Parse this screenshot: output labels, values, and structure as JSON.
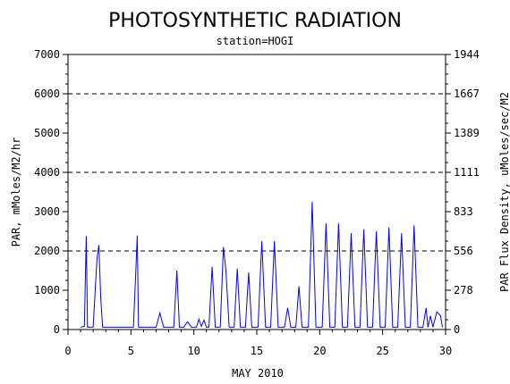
{
  "chart_data": {
    "type": "line",
    "title": "PHOTOSYNTHETIC RADIATION",
    "subtitle": "station=HOGI",
    "xlabel": "MAY 2010",
    "ylabel": "PAR, mMoles/M2/hr",
    "y2label": "PAR Flux Density, uMoles/sec/M2",
    "xlim": [
      0,
      30
    ],
    "ylim": [
      0,
      7000
    ],
    "x_ticks": [
      0,
      5,
      10,
      15,
      20,
      25,
      30
    ],
    "y_ticks": [
      0,
      1000,
      2000,
      3000,
      4000,
      5000,
      6000,
      7000
    ],
    "y2_ticks": [
      0,
      278,
      556,
      833,
      1111,
      1389,
      1667,
      1944
    ],
    "gridlines_dashed": [
      2000,
      4000,
      6000
    ],
    "line_color": "#0000ff",
    "series": [
      {
        "values": [
          [
            1.0,
            60
          ],
          [
            1.3,
            80
          ],
          [
            1.45,
            2380
          ],
          [
            1.55,
            60
          ],
          [
            2.0,
            60
          ],
          [
            2.3,
            1800
          ],
          [
            2.45,
            2150
          ],
          [
            2.6,
            800
          ],
          [
            2.75,
            60
          ],
          [
            5.2,
            60
          ],
          [
            5.4,
            1600
          ],
          [
            5.5,
            2390
          ],
          [
            5.6,
            60
          ],
          [
            7.0,
            60
          ],
          [
            7.3,
            420
          ],
          [
            7.6,
            60
          ],
          [
            8.4,
            60
          ],
          [
            8.65,
            1500
          ],
          [
            8.85,
            60
          ],
          [
            9.2,
            60
          ],
          [
            9.5,
            200
          ],
          [
            9.8,
            60
          ],
          [
            10.2,
            60
          ],
          [
            10.4,
            260
          ],
          [
            10.6,
            80
          ],
          [
            10.8,
            240
          ],
          [
            11.0,
            60
          ],
          [
            11.2,
            60
          ],
          [
            11.45,
            1600
          ],
          [
            11.7,
            60
          ],
          [
            12.1,
            60
          ],
          [
            12.35,
            2100
          ],
          [
            12.55,
            1500
          ],
          [
            12.8,
            60
          ],
          [
            13.2,
            60
          ],
          [
            13.45,
            1550
          ],
          [
            13.7,
            60
          ],
          [
            14.1,
            60
          ],
          [
            14.35,
            1450
          ],
          [
            14.6,
            60
          ],
          [
            15.1,
            60
          ],
          [
            15.4,
            2250
          ],
          [
            15.7,
            60
          ],
          [
            16.1,
            60
          ],
          [
            16.4,
            2250
          ],
          [
            16.7,
            60
          ],
          [
            17.2,
            60
          ],
          [
            17.45,
            550
          ],
          [
            17.7,
            60
          ],
          [
            18.1,
            60
          ],
          [
            18.35,
            1100
          ],
          [
            18.6,
            60
          ],
          [
            19.1,
            60
          ],
          [
            19.4,
            3250
          ],
          [
            19.7,
            60
          ],
          [
            20.2,
            60
          ],
          [
            20.5,
            2700
          ],
          [
            20.8,
            60
          ],
          [
            21.2,
            60
          ],
          [
            21.5,
            2700
          ],
          [
            21.8,
            60
          ],
          [
            22.2,
            60
          ],
          [
            22.5,
            2450
          ],
          [
            22.8,
            60
          ],
          [
            23.2,
            60
          ],
          [
            23.5,
            2550
          ],
          [
            23.8,
            60
          ],
          [
            24.2,
            60
          ],
          [
            24.5,
            2500
          ],
          [
            24.8,
            60
          ],
          [
            25.2,
            60
          ],
          [
            25.5,
            2600
          ],
          [
            25.8,
            60
          ],
          [
            26.2,
            60
          ],
          [
            26.5,
            2450
          ],
          [
            26.8,
            60
          ],
          [
            27.2,
            60
          ],
          [
            27.5,
            2650
          ],
          [
            27.8,
            60
          ],
          [
            28.2,
            60
          ],
          [
            28.45,
            550
          ],
          [
            28.6,
            60
          ],
          [
            28.8,
            350
          ],
          [
            29.0,
            60
          ],
          [
            29.3,
            450
          ],
          [
            29.6,
            350
          ],
          [
            29.75,
            60
          ]
        ]
      }
    ]
  }
}
